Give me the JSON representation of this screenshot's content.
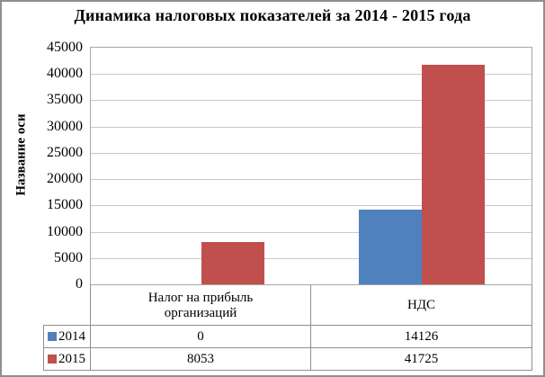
{
  "chart_data": {
    "type": "bar",
    "title": "Динамика налоговых показателей за 2014 - 2015 года",
    "ylabel": "Название оси",
    "xlabel": "",
    "categories": [
      "Налог на прибыль организаций",
      "НДС"
    ],
    "series": [
      {
        "name": "2014",
        "color": "#4f81bd",
        "values": [
          0,
          14126
        ]
      },
      {
        "name": "2015",
        "color": "#c0504d",
        "values": [
          8053,
          41725
        ]
      }
    ],
    "ylim": [
      0,
      45000
    ],
    "ytick_step": 5000,
    "yticks": [
      0,
      5000,
      10000,
      15000,
      20000,
      25000,
      30000,
      35000,
      40000,
      45000
    ],
    "grid": true,
    "legend_position": "bottom-data-table",
    "colors": {
      "series_2014": "#4f81bd",
      "series_2015": "#c0504d",
      "gridline": "#c9c9c9",
      "plot_border": "#a6a6a6",
      "table_border": "#8f8f8f",
      "outer_border": "#8f8f8f"
    }
  }
}
